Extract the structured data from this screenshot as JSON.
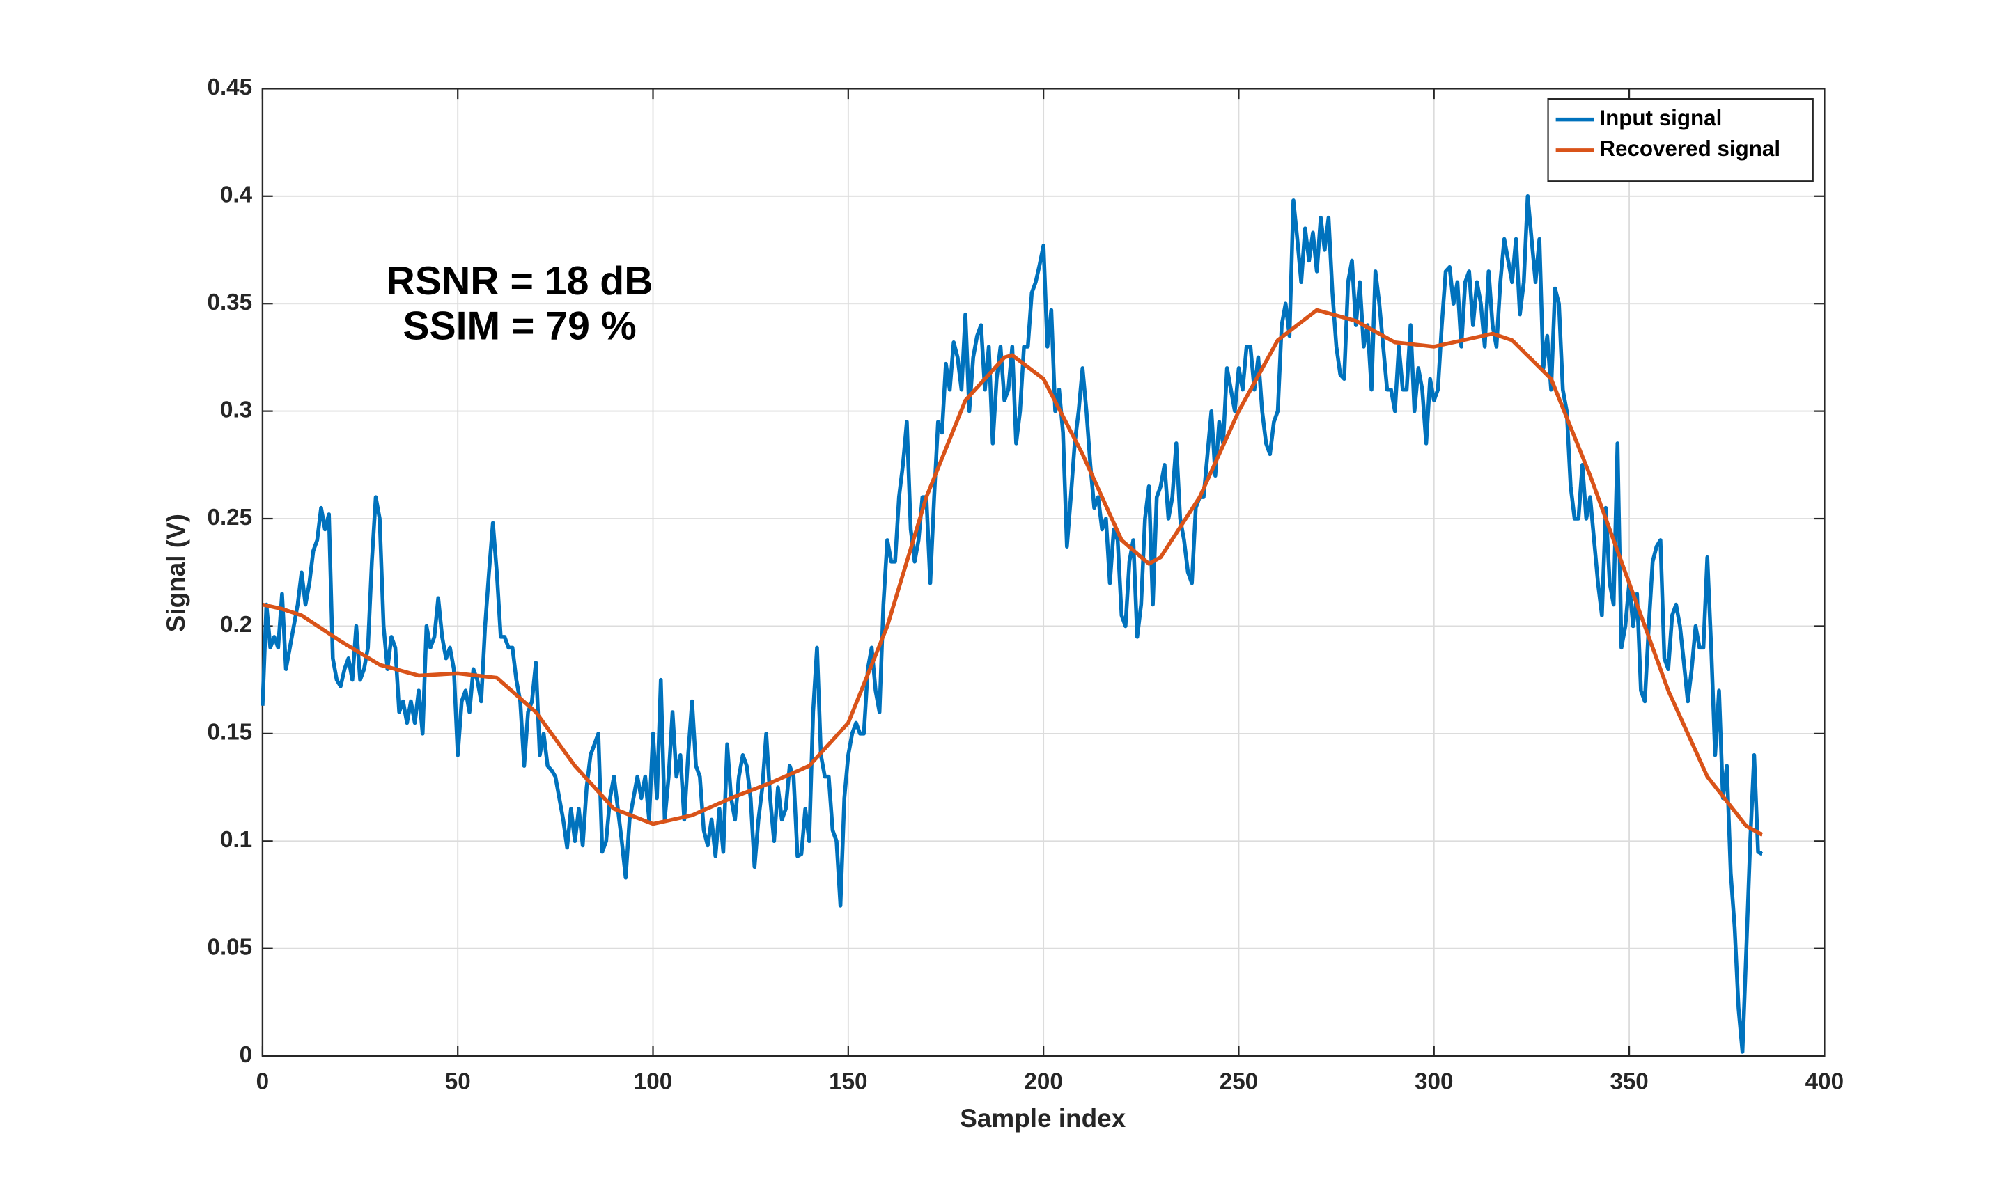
{
  "chart_data": {
    "type": "line",
    "xlabel": "Sample index",
    "ylabel": "Signal (V)",
    "annotations": [
      "RSNR = 18 dB",
      "SSIM = 79 %"
    ],
    "xlim": [
      0,
      400
    ],
    "xticks": [
      0,
      50,
      100,
      150,
      200,
      250,
      300,
      350,
      400
    ],
    "ylim": [
      0,
      0.45
    ],
    "yticks": [
      0,
      0.05,
      0.1,
      0.15,
      0.2,
      0.25,
      0.3,
      0.35,
      0.4,
      0.45
    ],
    "grid": true,
    "legend": "northeast",
    "series": [
      {
        "name": "Input signal",
        "color": "#0072BD",
        "x": [
          0,
          1,
          2,
          3,
          4,
          5,
          6,
          7,
          8,
          9,
          10,
          11,
          12,
          13,
          14,
          15,
          16,
          17,
          18,
          19,
          20,
          21,
          22,
          23,
          24,
          25,
          26,
          27,
          28,
          29,
          30,
          31,
          32,
          33,
          34,
          35,
          36,
          37,
          38,
          39,
          40,
          41,
          42,
          43,
          44,
          45,
          46,
          47,
          48,
          49,
          50,
          51,
          52,
          53,
          54,
          55,
          56,
          57,
          58,
          59,
          60,
          61,
          62,
          63,
          64,
          65,
          66,
          67,
          68,
          69,
          70,
          71,
          72,
          73,
          74,
          75,
          76,
          77,
          78,
          79,
          80,
          81,
          82,
          83,
          84,
          85,
          86,
          87,
          88,
          89,
          90,
          91,
          92,
          93,
          94,
          95,
          96,
          97,
          98,
          99,
          100,
          101,
          102,
          103,
          104,
          105,
          106,
          107,
          108,
          109,
          110,
          111,
          112,
          113,
          114,
          115,
          116,
          117,
          118,
          119,
          120,
          121,
          122,
          123,
          124,
          125,
          126,
          127,
          128,
          129,
          130,
          131,
          132,
          133,
          134,
          135,
          136,
          137,
          138,
          139,
          140,
          141,
          142,
          143,
          144,
          145,
          146,
          147,
          148,
          149,
          150,
          151,
          152,
          153,
          154,
          155,
          156,
          157,
          158,
          159,
          160,
          161,
          162,
          163,
          164,
          165,
          166,
          167,
          168,
          169,
          170,
          171,
          172,
          173,
          174,
          175,
          176,
          177,
          178,
          179,
          180,
          181,
          182,
          183,
          184,
          185,
          186,
          187,
          188,
          189,
          190,
          191,
          192,
          193,
          194,
          195,
          196,
          197,
          198,
          199,
          200,
          201,
          202,
          203,
          204,
          205,
          206,
          207,
          208,
          209,
          210,
          211,
          212,
          213,
          214,
          215,
          216,
          217,
          218,
          219,
          220,
          221,
          222,
          223,
          224,
          225,
          226,
          227,
          228,
          229,
          230,
          231,
          232,
          233,
          234,
          235,
          236,
          237,
          238,
          239,
          240,
          241,
          242,
          243,
          244,
          245,
          246,
          247,
          248,
          249,
          250,
          251,
          252,
          253,
          254,
          255,
          256,
          257,
          258,
          259,
          260,
          261,
          262,
          263,
          264,
          265,
          266,
          267,
          268,
          269,
          270,
          271,
          272,
          273,
          274,
          275,
          276,
          277,
          278,
          279,
          280,
          281,
          282,
          283,
          284,
          285,
          286,
          287,
          288,
          289,
          290,
          291,
          292,
          293,
          294,
          295,
          296,
          297,
          298,
          299,
          300,
          301,
          302,
          303,
          304,
          305,
          306,
          307,
          308,
          309,
          310,
          311,
          312,
          313,
          314,
          315,
          316,
          317,
          318,
          319,
          320,
          321,
          322,
          323,
          324,
          325,
          326,
          327,
          328,
          329,
          330,
          331,
          332,
          333,
          334,
          335,
          336,
          337,
          338,
          339,
          340,
          341,
          342,
          343,
          344,
          345,
          346,
          347,
          348,
          349,
          350,
          351,
          352,
          353,
          354,
          355,
          356,
          357,
          358,
          359,
          360,
          361,
          362,
          363,
          364,
          365,
          366,
          367,
          368,
          369,
          370,
          371,
          372,
          373,
          374,
          375,
          376,
          377,
          378,
          379,
          380,
          381,
          382,
          383,
          384
        ],
        "values": [
          0.163,
          0.21,
          0.19,
          0.195,
          0.19,
          0.215,
          0.18,
          0.19,
          0.2,
          0.21,
          0.225,
          0.21,
          0.22,
          0.235,
          0.24,
          0.255,
          0.245,
          0.252,
          0.185,
          0.175,
          0.172,
          0.18,
          0.185,
          0.175,
          0.2,
          0.175,
          0.18,
          0.19,
          0.23,
          0.26,
          0.25,
          0.2,
          0.18,
          0.195,
          0.19,
          0.16,
          0.165,
          0.155,
          0.165,
          0.155,
          0.17,
          0.15,
          0.2,
          0.19,
          0.195,
          0.213,
          0.195,
          0.185,
          0.19,
          0.18,
          0.14,
          0.165,
          0.17,
          0.16,
          0.18,
          0.175,
          0.165,
          0.2,
          0.225,
          0.248,
          0.225,
          0.195,
          0.195,
          0.19,
          0.19,
          0.175,
          0.165,
          0.135,
          0.16,
          0.165,
          0.183,
          0.14,
          0.15,
          0.135,
          0.133,
          0.13,
          0.12,
          0.11,
          0.097,
          0.115,
          0.1,
          0.115,
          0.098,
          0.125,
          0.14,
          0.145,
          0.15,
          0.095,
          0.1,
          0.12,
          0.13,
          0.115,
          0.1,
          0.083,
          0.11,
          0.12,
          0.13,
          0.12,
          0.13,
          0.11,
          0.15,
          0.12,
          0.175,
          0.11,
          0.13,
          0.16,
          0.13,
          0.14,
          0.11,
          0.14,
          0.165,
          0.135,
          0.13,
          0.105,
          0.098,
          0.11,
          0.093,
          0.115,
          0.095,
          0.145,
          0.12,
          0.11,
          0.13,
          0.14,
          0.135,
          0.12,
          0.088,
          0.11,
          0.125,
          0.15,
          0.12,
          0.1,
          0.125,
          0.11,
          0.115,
          0.135,
          0.13,
          0.093,
          0.094,
          0.115,
          0.1,
          0.16,
          0.19,
          0.14,
          0.13,
          0.13,
          0.105,
          0.1,
          0.07,
          0.12,
          0.14,
          0.15,
          0.155,
          0.15,
          0.15,
          0.18,
          0.19,
          0.17,
          0.16,
          0.21,
          0.24,
          0.23,
          0.23,
          0.26,
          0.275,
          0.295,
          0.245,
          0.23,
          0.24,
          0.26,
          0.26,
          0.22,
          0.26,
          0.295,
          0.29,
          0.322,
          0.31,
          0.332,
          0.325,
          0.31,
          0.345,
          0.3,
          0.325,
          0.335,
          0.34,
          0.31,
          0.33,
          0.285,
          0.315,
          0.33,
          0.305,
          0.31,
          0.33,
          0.285,
          0.3,
          0.33,
          0.33,
          0.355,
          0.36,
          0.368,
          0.377,
          0.33,
          0.347,
          0.3,
          0.31,
          0.29,
          0.237,
          0.26,
          0.285,
          0.3,
          0.32,
          0.3,
          0.275,
          0.255,
          0.26,
          0.245,
          0.25,
          0.22,
          0.245,
          0.24,
          0.205,
          0.2,
          0.23,
          0.24,
          0.195,
          0.21,
          0.25,
          0.265,
          0.21,
          0.26,
          0.265,
          0.275,
          0.25,
          0.26,
          0.285,
          0.25,
          0.24,
          0.225,
          0.22,
          0.255,
          0.26,
          0.26,
          0.28,
          0.3,
          0.27,
          0.295,
          0.285,
          0.32,
          0.31,
          0.3,
          0.32,
          0.31,
          0.33,
          0.33,
          0.31,
          0.325,
          0.3,
          0.285,
          0.28,
          0.295,
          0.3,
          0.34,
          0.35,
          0.335,
          0.398,
          0.38,
          0.36,
          0.385,
          0.37,
          0.383,
          0.365,
          0.39,
          0.375,
          0.39,
          0.355,
          0.33,
          0.317,
          0.315,
          0.36,
          0.37,
          0.34,
          0.36,
          0.33,
          0.34,
          0.31,
          0.365,
          0.35,
          0.33,
          0.31,
          0.31,
          0.3,
          0.33,
          0.31,
          0.31,
          0.34,
          0.3,
          0.32,
          0.31,
          0.285,
          0.315,
          0.305,
          0.31,
          0.34,
          0.365,
          0.367,
          0.35,
          0.36,
          0.33,
          0.36,
          0.365,
          0.34,
          0.36,
          0.35,
          0.33,
          0.365,
          0.34,
          0.33,
          0.36,
          0.38,
          0.37,
          0.36,
          0.38,
          0.345,
          0.36,
          0.4,
          0.38,
          0.36,
          0.38,
          0.32,
          0.335,
          0.31,
          0.357,
          0.35,
          0.31,
          0.3,
          0.265,
          0.25,
          0.25,
          0.275,
          0.25,
          0.26,
          0.24,
          0.22,
          0.205,
          0.255,
          0.22,
          0.21,
          0.285,
          0.19,
          0.2,
          0.22,
          0.2,
          0.215,
          0.17,
          0.165,
          0.2,
          0.23,
          0.237,
          0.24,
          0.185,
          0.18,
          0.205,
          0.21,
          0.2,
          0.183,
          0.165,
          0.18,
          0.2,
          0.19,
          0.19,
          0.232,
          0.19,
          0.14,
          0.17,
          0.12,
          0.135,
          0.085,
          0.06,
          0.022,
          0.002,
          0.05,
          0.1,
          0.14,
          0.095,
          0.094
        ]
      },
      {
        "name": "Recovered signal",
        "color": "#D95319",
        "x": [
          0,
          5,
          10,
          20,
          30,
          40,
          50,
          60,
          70,
          80,
          90,
          100,
          110,
          120,
          130,
          140,
          150,
          160,
          170,
          180,
          190,
          192,
          200,
          210,
          220,
          227,
          230,
          240,
          250,
          260,
          270,
          280,
          290,
          300,
          310,
          315,
          320,
          330,
          340,
          350,
          360,
          370,
          380,
          384
        ],
        "values": [
          0.21,
          0.208,
          0.205,
          0.193,
          0.182,
          0.177,
          0.178,
          0.176,
          0.16,
          0.135,
          0.115,
          0.108,
          0.112,
          0.12,
          0.127,
          0.135,
          0.155,
          0.2,
          0.26,
          0.305,
          0.325,
          0.326,
          0.315,
          0.28,
          0.24,
          0.229,
          0.232,
          0.26,
          0.3,
          0.333,
          0.347,
          0.342,
          0.332,
          0.33,
          0.334,
          0.336,
          0.333,
          0.315,
          0.27,
          0.22,
          0.17,
          0.13,
          0.107,
          0.103
        ]
      }
    ]
  }
}
